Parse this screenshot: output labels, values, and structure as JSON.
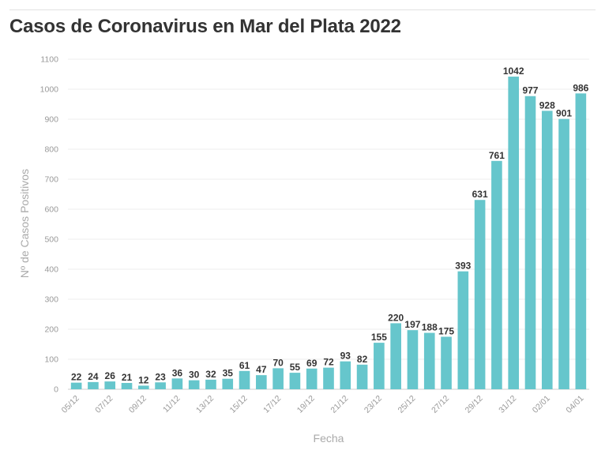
{
  "title": "Casos de Coronavirus en Mar del Plata 2022",
  "chart_data": {
    "type": "bar",
    "title": "Casos de Coronavirus en Mar del Plata 2022",
    "xlabel": "Fecha",
    "ylabel": "Nº de Casos Positivos",
    "ylim": [
      0,
      1100
    ],
    "yticks": [
      0,
      100,
      200,
      300,
      400,
      500,
      600,
      700,
      800,
      900,
      1000,
      1100
    ],
    "grid": true,
    "bar_color": "#66c6cc",
    "categories": [
      "05/12",
      "06/12",
      "07/12",
      "08/12",
      "09/12",
      "10/12",
      "11/12",
      "12/12",
      "13/12",
      "14/12",
      "15/12",
      "16/12",
      "17/12",
      "18/12",
      "19/12",
      "20/12",
      "21/12",
      "22/12",
      "23/12",
      "24/12",
      "25/12",
      "26/12",
      "27/12",
      "28/12",
      "29/12",
      "30/12",
      "31/12",
      "01/01",
      "02/01",
      "03/01",
      "04/01"
    ],
    "xtick_labels": [
      "05/12",
      "07/12",
      "09/12",
      "11/12",
      "13/12",
      "15/12",
      "17/12",
      "19/12",
      "21/12",
      "23/12",
      "25/12",
      "27/12",
      "29/12",
      "31/12",
      "02/01",
      "04/01"
    ],
    "values": [
      22,
      24,
      26,
      21,
      12,
      23,
      36,
      30,
      32,
      35,
      61,
      47,
      70,
      55,
      69,
      72,
      93,
      82,
      155,
      220,
      197,
      188,
      175,
      393,
      631,
      761,
      1042,
      977,
      928,
      901,
      986
    ]
  }
}
